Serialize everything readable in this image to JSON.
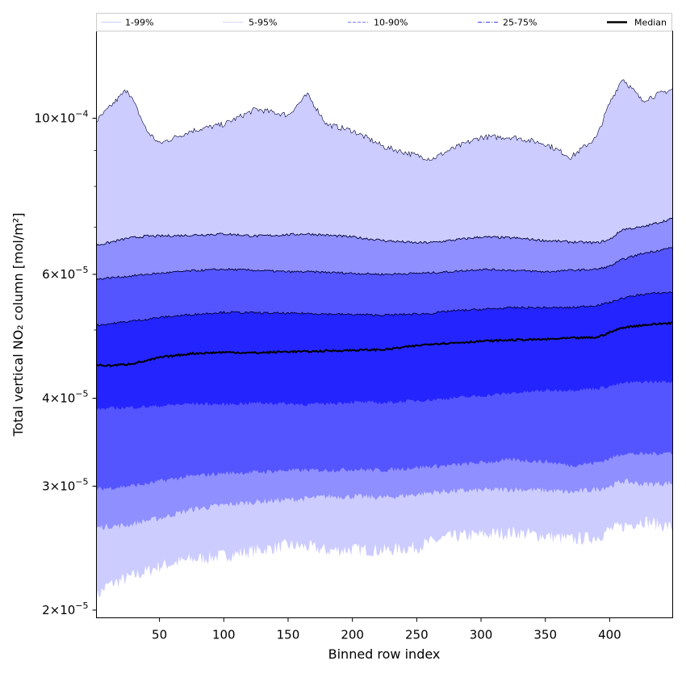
{
  "chart_data": {
    "type": "area",
    "xlabel": "Binned row index",
    "ylabel": "Total vertical NO₂ column [mol/m²]",
    "yscale": "log",
    "xlim": [
      1,
      449
    ],
    "ylim": [
      1.95e-05,
      0.000133
    ],
    "xticks": [
      50,
      100,
      150,
      200,
      250,
      300,
      350,
      400
    ],
    "yticks": [
      {
        "value": 2e-05,
        "mant": "2",
        "exp": "−5"
      },
      {
        "value": 3e-05,
        "mant": "3",
        "exp": "−5"
      },
      {
        "value": 4e-05,
        "mant": "4",
        "exp": "−5"
      },
      {
        "value": 6e-05,
        "mant": "6",
        "exp": "−5"
      },
      {
        "value": 0.0001,
        "mant": "10",
        "exp": "−4"
      }
    ],
    "x": [
      1,
      10,
      25,
      40,
      50,
      75,
      100,
      125,
      150,
      165,
      180,
      200,
      225,
      250,
      262,
      275,
      300,
      325,
      350,
      370,
      390,
      400,
      410,
      425,
      449
    ],
    "series": [
      {
        "name": "1-99%",
        "low": [
          2.09e-05,
          2.17e-05,
          2.22e-05,
          2.27e-05,
          2.31e-05,
          2.36e-05,
          2.39e-05,
          2.43e-05,
          2.47e-05,
          2.46e-05,
          2.43e-05,
          2.44e-05,
          2.43e-05,
          2.46e-05,
          2.5e-05,
          2.54e-05,
          2.56e-05,
          2.58e-05,
          2.55e-05,
          2.52e-05,
          2.54e-05,
          2.6e-05,
          2.63e-05,
          2.68e-05,
          2.62e-05
        ],
        "high": [
          9.9e-05,
          0.000103,
          0.00011,
          9.6e-05,
          9.2e-05,
          9.6e-05,
          9.8e-05,
          0.000103,
          0.000101,
          0.000108,
          9.8e-05,
          9.6e-05,
          9.1e-05,
          8.85e-05,
          8.75e-05,
          9e-05,
          9.4e-05,
          9.4e-05,
          9.2e-05,
          8.8e-05,
          9.4e-05,
          0.000105,
          0.000114,
          0.000106,
          0.00011
        ]
      },
      {
        "name": "5-95%",
        "low": [
          2.62e-05,
          2.63e-05,
          2.64e-05,
          2.68e-05,
          2.7e-05,
          2.78e-05,
          2.82e-05,
          2.85e-05,
          2.87e-05,
          2.88e-05,
          2.9e-05,
          2.9e-05,
          2.89e-05,
          2.92e-05,
          2.94e-05,
          2.95e-05,
          2.96e-05,
          2.97e-05,
          2.96e-05,
          2.94e-05,
          2.97e-05,
          3e-05,
          3.05e-05,
          3.02e-05,
          3.03e-05
        ],
        "high": [
          6.6e-05,
          6.65e-05,
          6.75e-05,
          6.8e-05,
          6.8e-05,
          6.82e-05,
          6.85e-05,
          6.8e-05,
          6.83e-05,
          6.85e-05,
          6.82e-05,
          6.78e-05,
          6.7e-05,
          6.65e-05,
          6.66e-05,
          6.7e-05,
          6.78e-05,
          6.76e-05,
          6.7e-05,
          6.67e-05,
          6.65e-05,
          6.72e-05,
          6.95e-05,
          7e-05,
          7.2e-05
        ]
      },
      {
        "name": "10-90%",
        "low": [
          2.97e-05,
          2.98e-05,
          3e-05,
          3.02e-05,
          3.05e-05,
          3.1e-05,
          3.13e-05,
          3.14e-05,
          3.16e-05,
          3.16e-05,
          3.16e-05,
          3.17e-05,
          3.16e-05,
          3.19e-05,
          3.2e-05,
          3.21e-05,
          3.24e-05,
          3.27e-05,
          3.25e-05,
          3.21e-05,
          3.24e-05,
          3.28e-05,
          3.34e-05,
          3.33e-05,
          3.35e-05
        ],
        "high": [
          5.9e-05,
          5.93e-05,
          5.96e-05,
          6e-05,
          6.02e-05,
          6.07e-05,
          6.1e-05,
          6.08e-05,
          6.05e-05,
          6.05e-05,
          6.04e-05,
          6.02e-05,
          6e-05,
          6.02e-05,
          6.03e-05,
          6.05e-05,
          6.1e-05,
          6.08e-05,
          6.05e-05,
          6.08e-05,
          6.1e-05,
          6.16e-05,
          6.3e-05,
          6.42e-05,
          6.55e-05
        ]
      },
      {
        "name": "25-75%",
        "low": [
          3.86e-05,
          3.87e-05,
          3.88e-05,
          3.89e-05,
          3.9e-05,
          3.93e-05,
          3.92e-05,
          3.94e-05,
          3.93e-05,
          3.92e-05,
          3.93e-05,
          3.95e-05,
          3.94e-05,
          3.97e-05,
          3.98e-05,
          4e-05,
          4.03e-05,
          4.07e-05,
          4.1e-05,
          4.11e-05,
          4.13e-05,
          4.16e-05,
          4.2e-05,
          4.22e-05,
          4.22e-05
        ],
        "high": [
          5.08e-05,
          5.1e-05,
          5.14e-05,
          5.18e-05,
          5.21e-05,
          5.26e-05,
          5.3e-05,
          5.29e-05,
          5.28e-05,
          5.28e-05,
          5.27e-05,
          5.26e-05,
          5.25e-05,
          5.27e-05,
          5.28e-05,
          5.32e-05,
          5.35e-05,
          5.38e-05,
          5.38e-05,
          5.38e-05,
          5.42e-05,
          5.47e-05,
          5.55e-05,
          5.62e-05,
          5.66e-05
        ]
      },
      {
        "name": "Median",
        "values": [
          4.46e-05,
          4.45e-05,
          4.47e-05,
          4.52e-05,
          4.57e-05,
          4.63e-05,
          4.65e-05,
          4.64e-05,
          4.66e-05,
          4.66e-05,
          4.67e-05,
          4.68e-05,
          4.69e-05,
          4.75e-05,
          4.78e-05,
          4.79e-05,
          4.82e-05,
          4.84e-05,
          4.85e-05,
          4.87e-05,
          4.88e-05,
          4.96e-05,
          5.04e-05,
          5.08e-05,
          5.12e-05
        ]
      }
    ],
    "legend": {
      "placement": "top, spanning full width",
      "entries": [
        {
          "label": "1-99%",
          "color": "#ccccff",
          "style": "solid-thin"
        },
        {
          "label": "5-95%",
          "color": "#9999e6",
          "style": "dotted"
        },
        {
          "label": "10-90%",
          "color": "#7a7aff",
          "style": "dashed"
        },
        {
          "label": "25-75%",
          "color": "#3c3cf0",
          "style": "dashdot"
        },
        {
          "label": "Median",
          "color": "#000000",
          "style": "solid-thick"
        }
      ]
    },
    "colors": {
      "band_1_99": "#ccccff",
      "band_5_95": "#8f8fff",
      "band_10_90": "#5555ff",
      "band_25_75": "#2424ff",
      "median": "#000000",
      "edge": "#000033"
    }
  }
}
